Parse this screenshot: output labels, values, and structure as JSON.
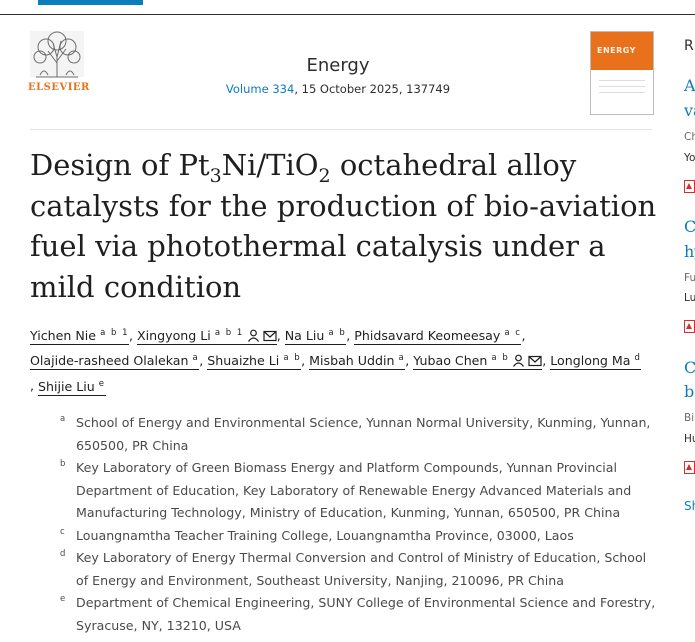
{
  "header": {
    "publisher": "ELSEVIER",
    "journal": "Energy",
    "volume_link": "Volume 334",
    "issue_details": ", 15 October 2025, 137749",
    "cover_text": "ENERGY"
  },
  "article": {
    "title_parts": {
      "a": "Design of Pt",
      "b": "3",
      "c": "Ni/TiO",
      "d": "2",
      "e": " octahedral alloy catalysts for the production of bio-aviation fuel via photothermal catalysis under a mild condition"
    }
  },
  "authors": [
    {
      "name": "Yichen Nie",
      "sup": "a b 1"
    },
    {
      "name": "Xingyong Li",
      "sup": "a b 1"
    },
    {
      "name": "Na Liu",
      "sup": "a b"
    },
    {
      "name": "Phidsavard Keomeesay",
      "sup": "a c"
    },
    {
      "name": "Olajide-rasheed Olalekan",
      "sup": "a"
    },
    {
      "name": "Shuaizhe Li",
      "sup": "a b"
    },
    {
      "name": "Misbah Uddin",
      "sup": "a"
    },
    {
      "name": "Yubao Chen",
      "sup": "a b"
    },
    {
      "name": "Longlong Ma",
      "sup": "d"
    },
    {
      "name": "Shijie Liu",
      "sup": "e"
    }
  ],
  "author_separator": ",",
  "affiliations": [
    {
      "letter": "a",
      "text": "School of Energy and Environmental Science, Yunnan Normal University, Kunming, Yunnan, 650500, PR China"
    },
    {
      "letter": "b",
      "text": "Key Laboratory of Green Biomass Energy and Platform Compounds, Yunnan Provincial Department of Education, Key Laboratory of Renewable Energy Advanced Materials and Manufacturing Technology, Ministry of Education, Kunming, Yunnan, 650500, PR China"
    },
    {
      "letter": "c",
      "text": "Louangnamtha Teacher Training College, Louangnamtha Province, 03000, Laos"
    },
    {
      "letter": "d",
      "text": "Key Laboratory of Energy Thermal Conversion and Control of Ministry of Education, School of Energy and Environment, Southeast University, Nanjing, 210096, PR China"
    },
    {
      "letter": "e",
      "text": "Department of Chemical Engineering, SUNY College of Environmental Science and Forestry, Syracuse, NY, 13210, USA"
    }
  ],
  "sidebar": {
    "heading": "R",
    "items": [
      {
        "title_1": "A",
        "title_2": "va",
        "meta": "Ch",
        "authors": "Yo"
      },
      {
        "title_1": "Ca",
        "title_2": "hy",
        "meta": "Fu",
        "authors": "Lu"
      },
      {
        "title_1": "Co",
        "title_2": "ba",
        "meta": "Bi",
        "authors": "Hu"
      }
    ],
    "show_more": "Sh"
  },
  "colors": {
    "link": "#0c7dbb",
    "elsevier_orange": "#e9711c",
    "pdf_red": "#d32f2f"
  }
}
